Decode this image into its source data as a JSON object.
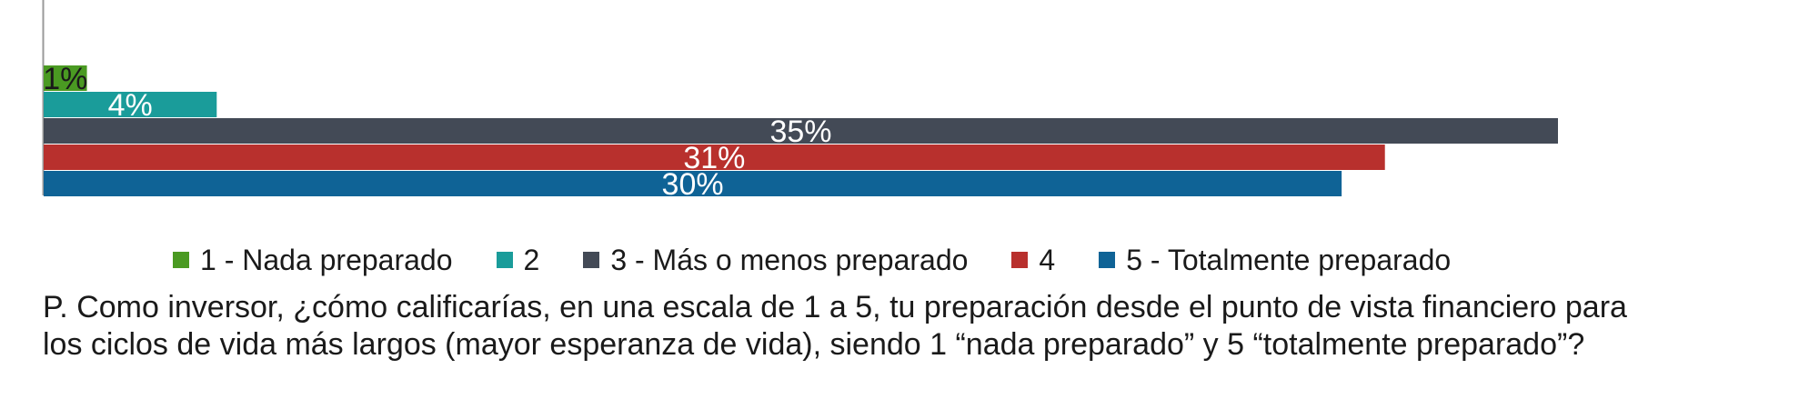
{
  "chart_data": {
    "type": "bar",
    "orientation": "horizontal",
    "categories": [
      "1 - Nada preparado",
      "2",
      "3 - Más o menos preparado",
      "4",
      "5 - Totalmente preparado"
    ],
    "values": [
      1,
      4,
      35,
      31,
      30
    ],
    "value_labels": [
      "1%",
      "4%",
      "35%",
      "31%",
      "30%"
    ],
    "colors": [
      "#4a9a22",
      "#1a9c9a",
      "#434a56",
      "#b8302d",
      "#0f6396"
    ],
    "xlim": [
      0,
      35
    ],
    "grid": false,
    "legend_position": "bottom"
  },
  "legend": [
    {
      "label": "1 - Nada preparado",
      "color": "#4a9a22"
    },
    {
      "label": "2",
      "color": "#1a9c9a"
    },
    {
      "label": "3 - Más o menos preparado",
      "color": "#434a56"
    },
    {
      "label": "4",
      "color": "#b8302d"
    },
    {
      "label": "5 - Totalmente preparado",
      "color": "#0f6396"
    }
  ],
  "question": {
    "line1": "P. Como inversor, ¿cómo calificarías, en una escala de 1 a 5, tu preparación desde el punto de vista financiero para",
    "line2": "los ciclos de vida más largos (mayor esperanza de vida), siendo 1 “nada preparado” y 5 “totalmente preparado”?"
  }
}
